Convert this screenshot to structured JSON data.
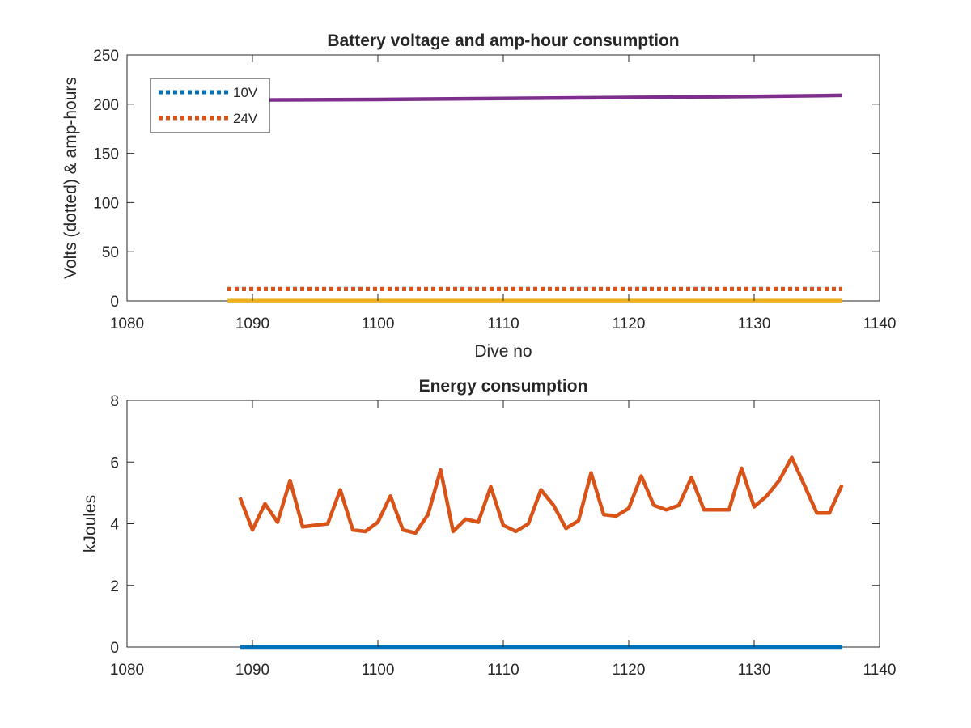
{
  "chart_data": [
    {
      "type": "line",
      "title": "Battery voltage and amp-hour consumption",
      "xlabel": "Dive no",
      "ylabel": "Volts (dotted) & amp-hours",
      "xlim": [
        1080,
        1140
      ],
      "ylim": [
        0,
        250
      ],
      "xticks": [
        "1080",
        "1090",
        "1100",
        "1110",
        "1120",
        "1130",
        "1140"
      ],
      "yticks": [
        "0",
        "50",
        "100",
        "150",
        "200",
        "250"
      ],
      "grid": false,
      "legend_position": "top-left",
      "series": [
        {
          "name": "10V",
          "style": "dotted",
          "color": "#0072BD",
          "x": [
            1088,
            1137
          ],
          "y": [
            12,
            12
          ]
        },
        {
          "name": "24V",
          "style": "dotted",
          "color": "#D95319",
          "x": [
            1088,
            1137
          ],
          "y": [
            12,
            12
          ]
        },
        {
          "style": "solid",
          "color": "#EDB120",
          "x": [
            1088,
            1137
          ],
          "y": [
            0.3,
            0.3
          ]
        },
        {
          "style": "solid",
          "color": "#7E2F8E",
          "x": [
            1088,
            1090,
            1100,
            1110,
            1120,
            1130,
            1137
          ],
          "y": [
            204,
            204.3,
            204.8,
            205.8,
            206.8,
            207.8,
            209
          ]
        }
      ]
    },
    {
      "type": "line",
      "title": "Energy consumption",
      "xlabel": "",
      "ylabel": "kJoules",
      "xlim": [
        1080,
        1140
      ],
      "ylim": [
        0,
        8
      ],
      "xticks": [
        "1080",
        "1090",
        "1100",
        "1110",
        "1120",
        "1130",
        "1140"
      ],
      "yticks": [
        "0",
        "2",
        "4",
        "6",
        "8"
      ],
      "grid": false,
      "series": [
        {
          "style": "solid",
          "color": "#0072BD",
          "x": [
            1089,
            1137
          ],
          "y": [
            0,
            0
          ]
        },
        {
          "style": "solid",
          "color": "#D95319",
          "x": [
            1089,
            1090,
            1091,
            1092,
            1093,
            1094,
            1095,
            1096,
            1097,
            1098,
            1099,
            1100,
            1101,
            1102,
            1103,
            1104,
            1105,
            1106,
            1107,
            1108,
            1109,
            1110,
            1111,
            1112,
            1113,
            1114,
            1115,
            1116,
            1117,
            1118,
            1119,
            1120,
            1121,
            1122,
            1123,
            1124,
            1125,
            1126,
            1127,
            1128,
            1129,
            1130,
            1131,
            1132,
            1133,
            1134,
            1135,
            1136,
            1137
          ],
          "y": [
            4.85,
            3.8,
            4.65,
            4.05,
            5.4,
            3.9,
            3.95,
            4.0,
            5.1,
            3.8,
            3.75,
            4.05,
            4.9,
            3.8,
            3.7,
            4.3,
            5.75,
            3.75,
            4.15,
            4.05,
            5.2,
            3.95,
            3.75,
            4.0,
            5.1,
            4.6,
            3.85,
            4.1,
            5.65,
            4.3,
            4.25,
            4.5,
            5.55,
            4.6,
            4.45,
            4.6,
            5.5,
            4.45,
            4.45,
            4.45,
            5.8,
            4.55,
            4.9,
            5.4,
            6.15,
            5.25,
            4.35,
            4.35,
            5.25
          ]
        }
      ]
    }
  ]
}
